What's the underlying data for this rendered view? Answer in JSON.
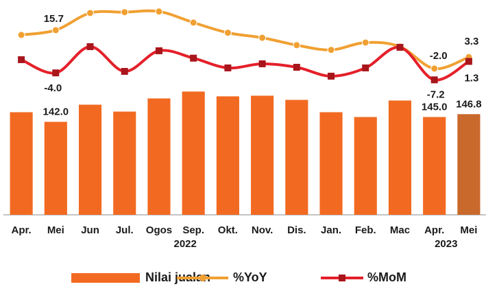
{
  "chart_data": {
    "type": "bar",
    "categories": [
      "Apr.",
      "Mei",
      "Jun",
      "Jul.",
      "Ogos",
      "Sep.",
      "Okt.",
      "Nov.",
      "Dis.",
      "Jan.",
      "Feb.",
      "Mac",
      "Apr.",
      "Mei"
    ],
    "years": [
      "2022",
      "2023"
    ],
    "ylim": [
      84,
      218
    ],
    "y2lim": [
      -69.4,
      29.6
    ],
    "series": [
      {
        "name": "Nilai jualan",
        "type": "bar",
        "color": "#f26a21",
        "highlight_color": "#c9692c",
        "values": [
          148.0,
          142.0,
          152.7,
          148.4,
          156.6,
          160.9,
          157.9,
          158.3,
          155.7,
          148.0,
          145.0,
          155.3,
          145.0,
          146.8
        ],
        "value_labels": [
          null,
          "142.0",
          null,
          null,
          null,
          null,
          null,
          null,
          null,
          null,
          null,
          null,
          "145.0",
          "146.8"
        ]
      },
      {
        "name": "%YoY",
        "type": "line",
        "axis": "y2",
        "color": "#f0a032",
        "marker": "circle",
        "values": [
          13.5,
          15.7,
          23.6,
          24.0,
          24.3,
          19.2,
          14.5,
          12.2,
          8.8,
          6.6,
          10.0,
          8.1,
          -2.0,
          3.3
        ],
        "value_labels": [
          null,
          "15.7",
          null,
          null,
          null,
          null,
          null,
          null,
          null,
          null,
          null,
          null,
          "-2.0",
          "3.3"
        ]
      },
      {
        "name": "%MoM",
        "type": "line",
        "axis": "y2",
        "color": "#e4202a",
        "marker_color": "#a8161c",
        "marker": "square",
        "values": [
          2.1,
          -4.0,
          8.1,
          -3.3,
          6.2,
          2.8,
          -1.7,
          0.2,
          -1.4,
          -5.5,
          -1.7,
          7.8,
          -7.2,
          1.3
        ],
        "value_labels": [
          null,
          "-4.0",
          null,
          null,
          null,
          null,
          null,
          null,
          null,
          null,
          null,
          null,
          "-7.2",
          "1.3"
        ]
      }
    ]
  }
}
